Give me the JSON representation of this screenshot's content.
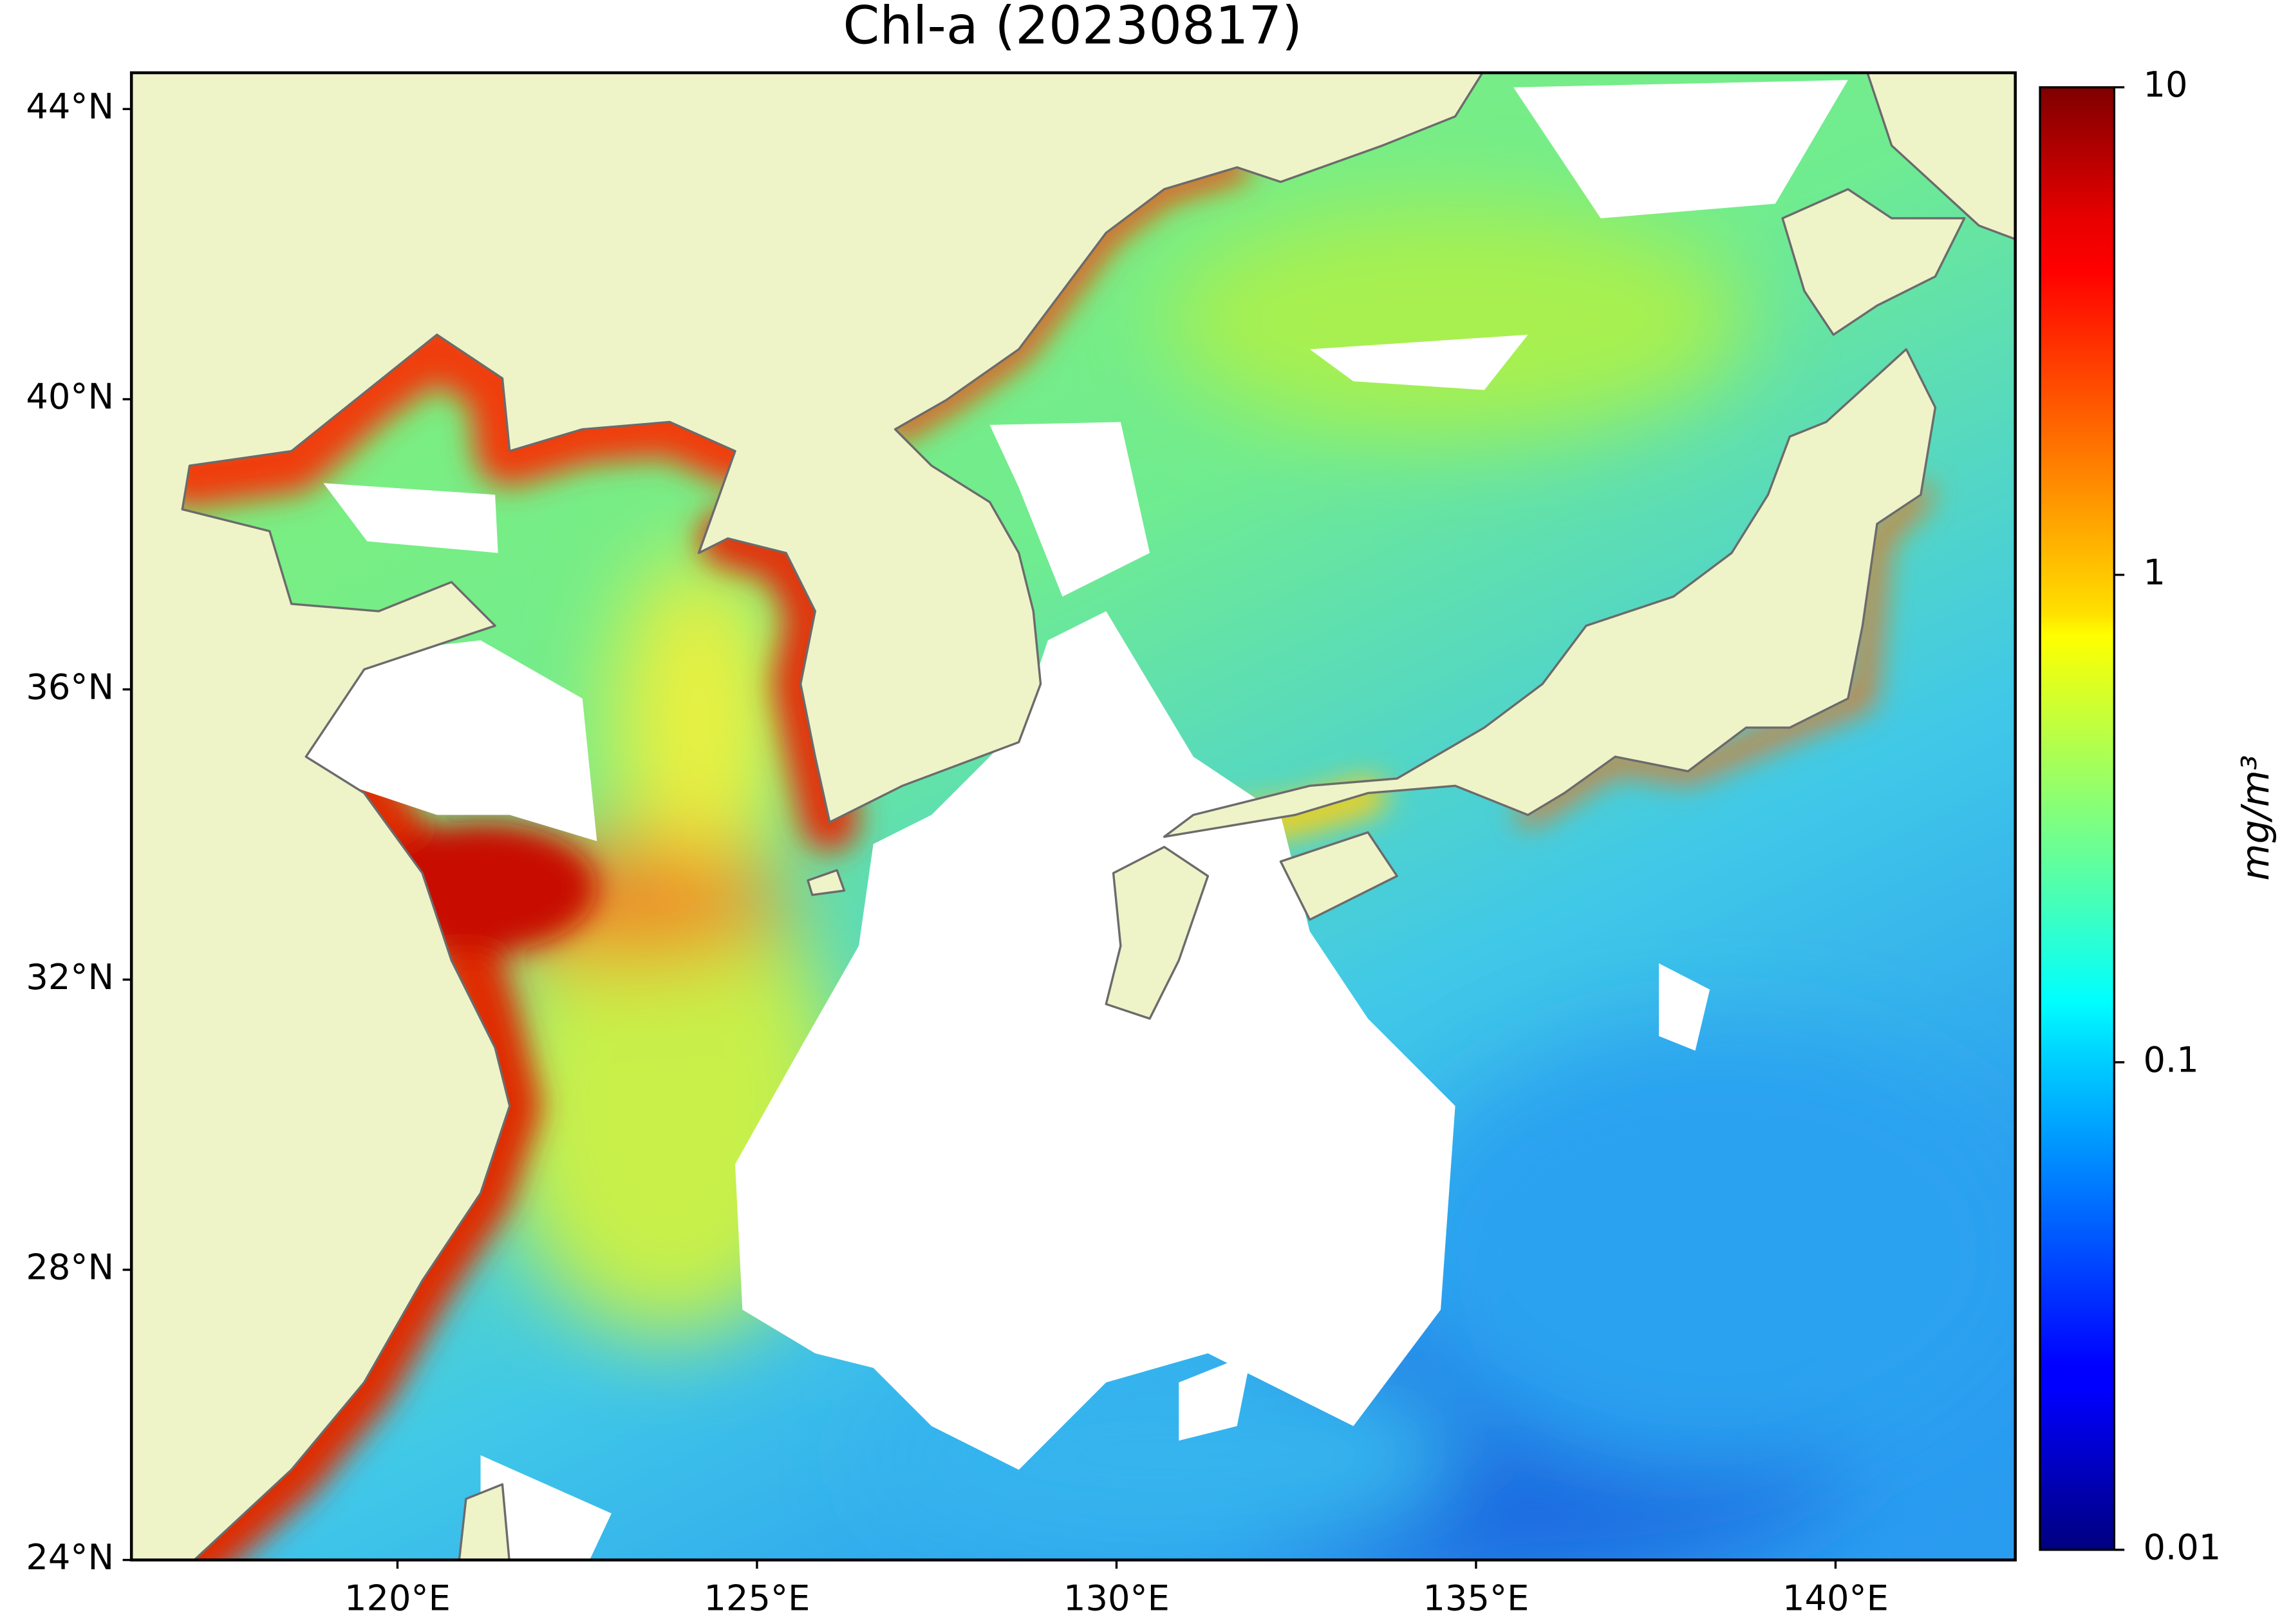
{
  "chart_data": {
    "type": "map",
    "title": "Chl-a (20230817)",
    "xlim": [
      116.3,
      142.5
    ],
    "xticks": [
      {
        "value": 120,
        "label": "120°E"
      },
      {
        "value": 125,
        "label": "125°E"
      },
      {
        "value": 130,
        "label": "130°E"
      },
      {
        "value": 135,
        "label": "135°E"
      },
      {
        "value": 140,
        "label": "140°E"
      }
    ],
    "ylim": [
      24,
      44.5
    ],
    "yticks": [
      {
        "value": 24,
        "label": "24°N"
      },
      {
        "value": 28,
        "label": "28°N"
      },
      {
        "value": 32,
        "label": "32°N"
      },
      {
        "value": 36,
        "label": "36°N"
      },
      {
        "value": 40,
        "label": "40°N"
      },
      {
        "value": 44,
        "label": "44°N"
      }
    ],
    "colorbar": {
      "label": "mg/m³",
      "scale": "log",
      "colormap": "jet",
      "lim": [
        0.01,
        10
      ],
      "ticks": [
        0.01,
        0.1,
        1,
        10
      ]
    }
  }
}
